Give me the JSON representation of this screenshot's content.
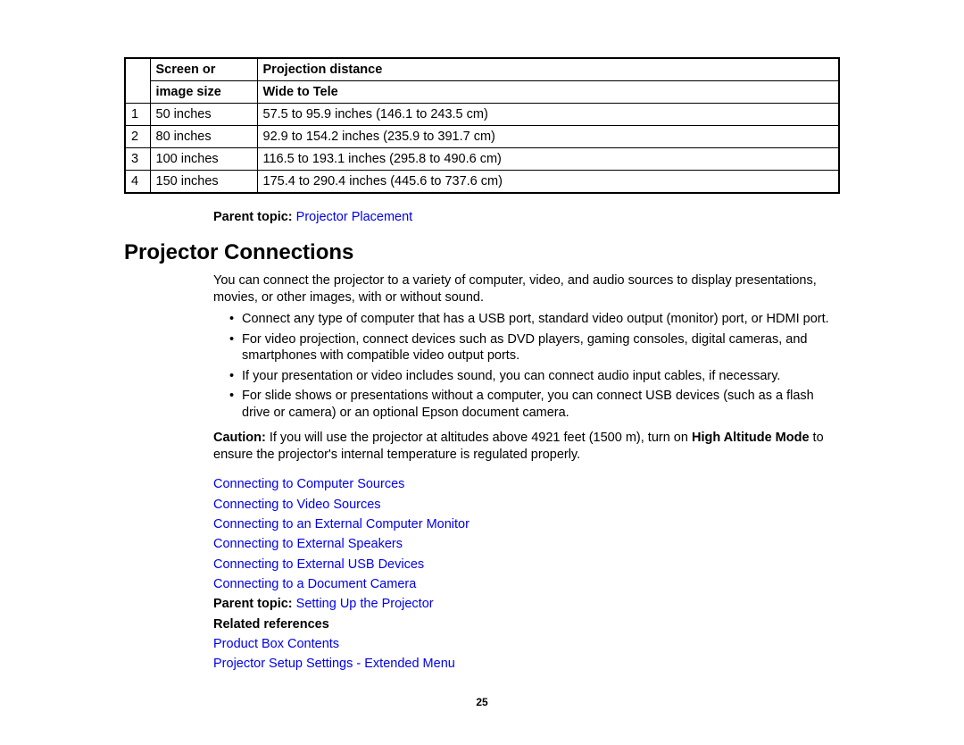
{
  "table": {
    "header": {
      "col_num_blank": "",
      "col_size_l1": "Screen or",
      "col_size_l2": "image size",
      "col_dist_l1": "Projection distance",
      "col_dist_l2": "Wide to Tele"
    },
    "rows": [
      {
        "n": "1",
        "size": "50 inches",
        "dist": "57.5 to 95.9 inches (146.1 to 243.5 cm)"
      },
      {
        "n": "2",
        "size": "80 inches",
        "dist": "92.9 to 154.2 inches (235.9 to 391.7 cm)"
      },
      {
        "n": "3",
        "size": "100 inches",
        "dist": "116.5 to 193.1 inches (295.8 to 490.6 cm)"
      },
      {
        "n": "4",
        "size": "150 inches",
        "dist": "175.4 to 290.4 inches (445.6 to 737.6 cm)"
      }
    ]
  },
  "parent_topic_1": {
    "label": "Parent topic: ",
    "link": "Projector Placement"
  },
  "section_title": "Projector Connections",
  "intro": "You can connect the projector to a variety of computer, video, and audio sources to display presentations, movies, or other images, with or without sound.",
  "bullets": [
    "Connect any type of computer that has a USB port, standard video output (monitor) port, or HDMI port.",
    "For video projection, connect devices such as DVD players, gaming consoles, digital cameras, and smartphones with compatible video output ports.",
    "If your presentation or video includes sound, you can connect audio input cables, if necessary.",
    "For slide shows or presentations without a computer, you can connect USB devices (such as a flash drive or camera) or an optional Epson document camera."
  ],
  "caution": {
    "label": "Caution:",
    "text_pre": " If you will use the projector at altitudes above 4921 feet (1500 m), turn on ",
    "bold": "High Altitude Mode",
    "text_post": " to ensure the projector's internal temperature is regulated properly."
  },
  "topic_links": [
    "Connecting to Computer Sources",
    "Connecting to Video Sources",
    "Connecting to an External Computer Monitor",
    "Connecting to External Speakers",
    "Connecting to External USB Devices",
    "Connecting to a Document Camera"
  ],
  "parent_topic_2": {
    "label": "Parent topic: ",
    "link": "Setting Up the Projector"
  },
  "related_label": "Related references",
  "related_links": [
    "Product Box Contents",
    "Projector Setup Settings - Extended Menu"
  ],
  "page_number": "25"
}
